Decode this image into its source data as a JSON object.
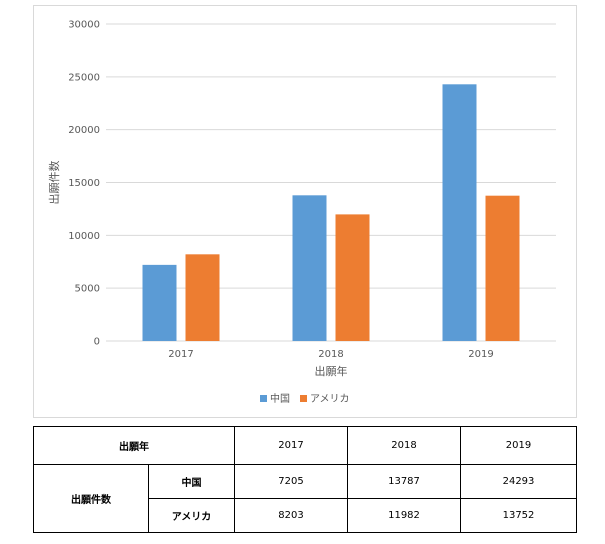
{
  "chart_data": {
    "type": "bar",
    "xlabel": "出願年",
    "ylabel": "出願件数",
    "categories": [
      "2017",
      "2018",
      "2019"
    ],
    "series": [
      {
        "name": "中国",
        "values": [
          7205,
          13787,
          24293
        ],
        "color": "#5b9bd5"
      },
      {
        "name": "アメリカ",
        "values": [
          8203,
          11982,
          13752
        ],
        "color": "#ed7d31"
      }
    ],
    "ylim": [
      0,
      30000
    ],
    "yticks": [
      "0",
      "5000",
      "10000",
      "15000",
      "20000",
      "25000",
      "30000"
    ],
    "grid": true,
    "legend_position": "bottom"
  },
  "table": {
    "header_label": "出願年",
    "years": [
      "2017",
      "2018",
      "2019"
    ],
    "row_group_label": "出願件数",
    "rows": [
      {
        "label": "中国",
        "values": [
          "7205",
          "13787",
          "24293"
        ]
      },
      {
        "label": "アメリカ",
        "values": [
          "8203",
          "11982",
          "13752"
        ]
      }
    ]
  }
}
